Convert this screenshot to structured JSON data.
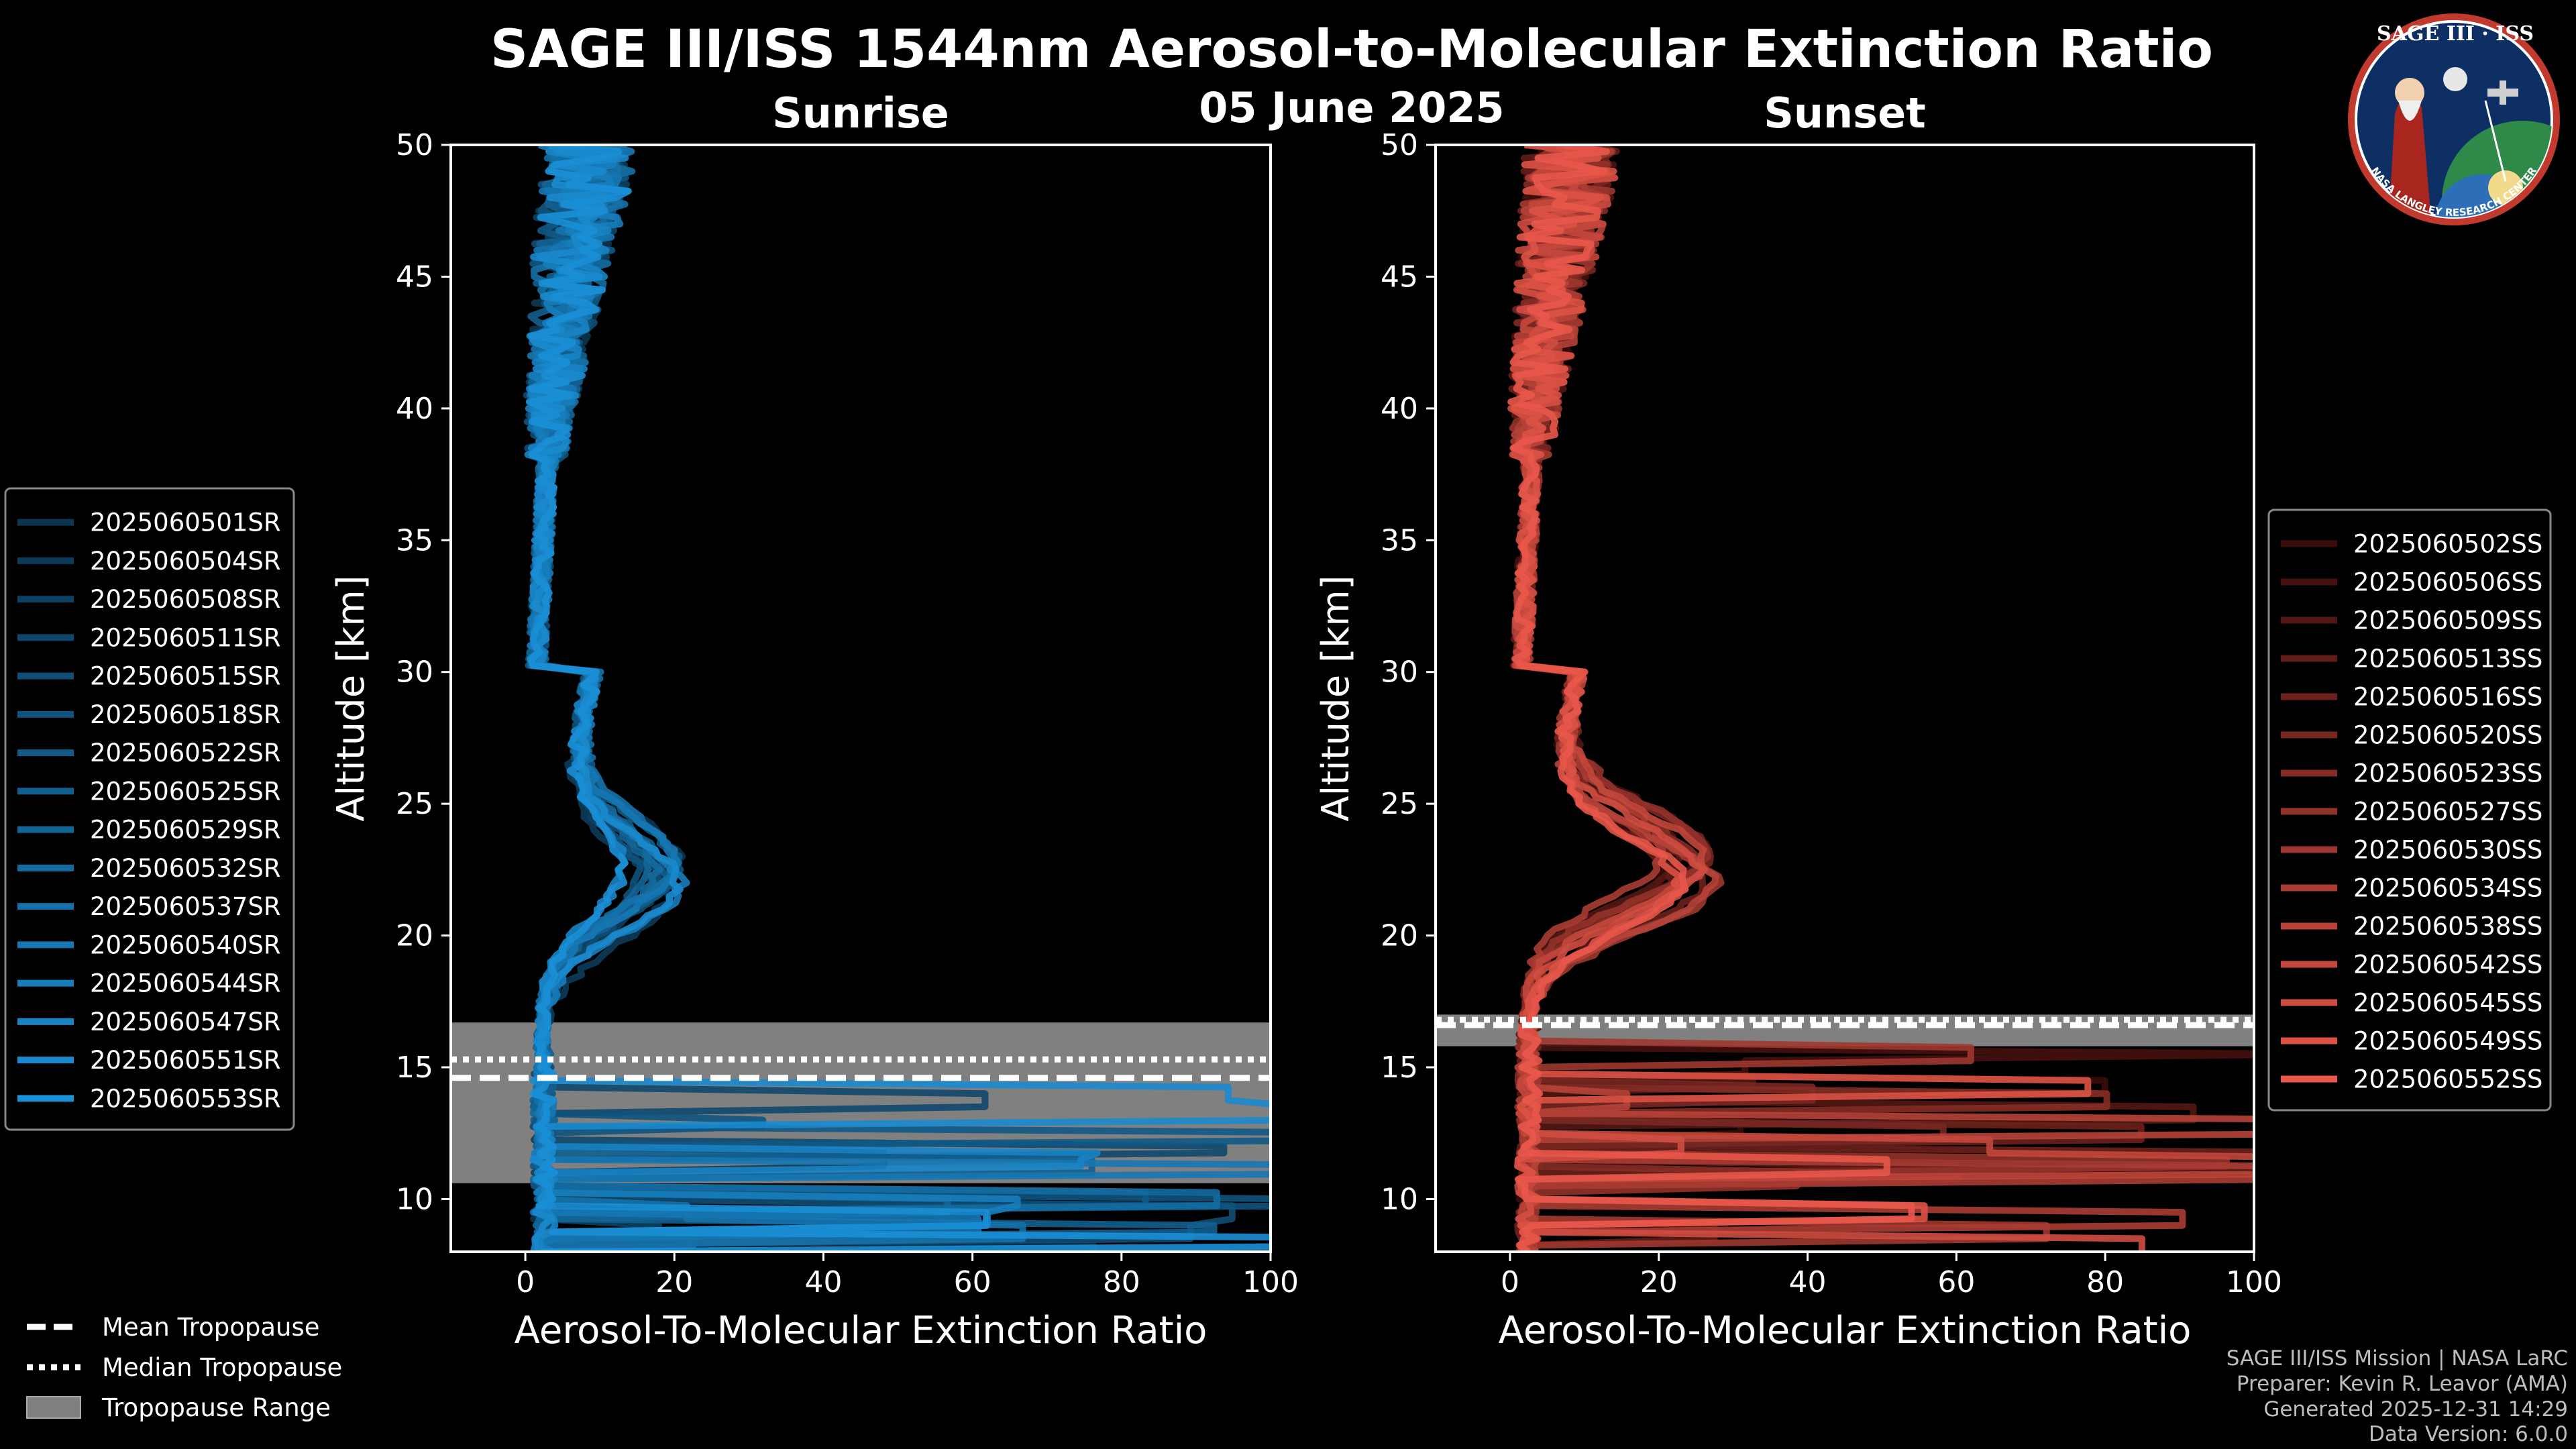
{
  "title": "SAGE III/ISS 1544nm Aerosol-to-Molecular Extinction Ratio",
  "date": "05 June 2025",
  "logo": {
    "text": "SAGE III · ISS",
    "ring_text": "NASA LANGLEY RESEARCH CENTER"
  },
  "credits": [
    "SAGE III/ISS Mission | NASA LaRC",
    "Preparer: Kevin R. Leavor (AMA)",
    "Generated 2025-12-31 14:29",
    "Data Version: 6.0.0"
  ],
  "tropopause_legend": {
    "mean": "Mean Tropopause",
    "median": "Median Tropopause",
    "range": "Tropopause Range"
  },
  "chart_data": [
    {
      "type": "line",
      "title": "Sunrise",
      "xlabel": "Aerosol-To-Molecular Extinction Ratio",
      "ylabel": "Altitude [km]",
      "xlim": [
        -10,
        100
      ],
      "ylim": [
        8,
        50
      ],
      "xticks": [
        0,
        20,
        40,
        60,
        80,
        100
      ],
      "yticks": [
        10,
        15,
        20,
        25,
        30,
        35,
        40,
        45,
        50
      ],
      "color_dark": "#0b3550",
      "color_light": "#1a8fd6",
      "tropopause": {
        "mean": 14.6,
        "median": 15.3,
        "min": 10.6,
        "max": 16.7
      },
      "series": [
        "2025060501SR",
        "2025060504SR",
        "2025060508SR",
        "2025060511SR",
        "2025060515SR",
        "2025060518SR",
        "2025060522SR",
        "2025060525SR",
        "2025060529SR",
        "2025060532SR",
        "2025060537SR",
        "2025060540SR",
        "2025060544SR",
        "2025060547SR",
        "2025060551SR",
        "2025060553SR"
      ]
    },
    {
      "type": "line",
      "title": "Sunset",
      "xlabel": "Aerosol-To-Molecular Extinction Ratio",
      "ylabel": "Altitude [km]",
      "xlim": [
        -10,
        100
      ],
      "ylim": [
        8,
        50
      ],
      "xticks": [
        0,
        20,
        40,
        60,
        80,
        100
      ],
      "yticks": [
        10,
        15,
        20,
        25,
        30,
        35,
        40,
        45,
        50
      ],
      "color_dark": "#3a0c0a",
      "color_light": "#e8574a",
      "tropopause": {
        "mean": 16.6,
        "median": 16.8,
        "min": 15.8,
        "max": 17.0
      },
      "series": [
        "2025060502SS",
        "2025060506SS",
        "2025060509SS",
        "2025060513SS",
        "2025060516SS",
        "2025060520SS",
        "2025060523SS",
        "2025060527SS",
        "2025060530SS",
        "2025060534SS",
        "2025060538SS",
        "2025060542SS",
        "2025060545SS",
        "2025060549SS",
        "2025060552SS"
      ]
    }
  ]
}
